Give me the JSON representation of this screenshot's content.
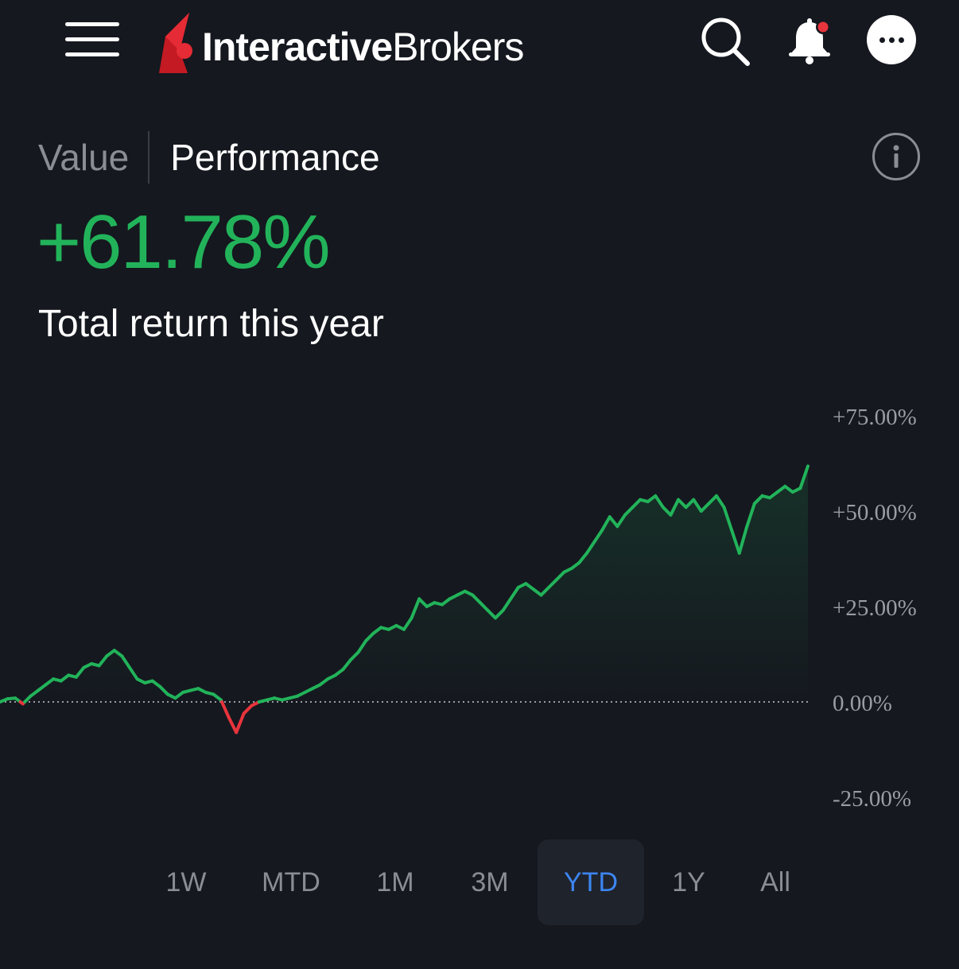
{
  "header": {
    "logo_bold": "Interactive",
    "logo_light": "Brokers",
    "icons": [
      "menu-icon",
      "search-icon",
      "bell-icon",
      "more-icon"
    ],
    "notification_dot_color": "#e8343d"
  },
  "toggle": {
    "value_label": "Value",
    "performance_label": "Performance",
    "active": "Performance"
  },
  "summary": {
    "return_value": "+61.78%",
    "return_caption": "Total return this year"
  },
  "colors": {
    "positive": "#22b35a",
    "negative": "#e8343d",
    "accent": "#3d86f2",
    "background": "#15181f"
  },
  "chart_data": {
    "type": "line",
    "title": "",
    "xlabel": "",
    "ylabel": "",
    "ylim": [
      -25,
      75
    ],
    "yticks": [
      "+75.00%",
      "+50.00%",
      "+25.00%",
      "0.00%",
      "-25.00%"
    ],
    "ytick_values": [
      75,
      50,
      25,
      0,
      -25
    ],
    "baseline": 0,
    "baseline_style": "dotted",
    "grid": false,
    "series": [
      {
        "values": [
          0.0,
          0.8,
          1.0,
          -0.5,
          1.5,
          3.0,
          4.5,
          6.0,
          5.5,
          7.0,
          6.5,
          9.0,
          10.0,
          9.5,
          12.0,
          13.5,
          12.0,
          9.0,
          6.0,
          5.0,
          5.5,
          4.0,
          2.0,
          1.0,
          2.5,
          3.0,
          3.5,
          2.5,
          2.0,
          0.5,
          -4.0,
          -8.0,
          -3.0,
          -1.0,
          0.0,
          0.5,
          1.0,
          0.5,
          1.0,
          1.5,
          2.5,
          3.5,
          4.5,
          6.0,
          7.0,
          8.5,
          11.0,
          13.0,
          16.0,
          18.0,
          19.5,
          19.0,
          20.0,
          19.0,
          22.0,
          27.0,
          25.0,
          26.0,
          25.5,
          27.0,
          28.0,
          29.0,
          28.0,
          26.0,
          24.0,
          22.0,
          24.0,
          27.0,
          30.0,
          31.0,
          29.5,
          28.0,
          30.0,
          32.0,
          34.0,
          35.0,
          36.5,
          39.0,
          42.0,
          45.0,
          48.5,
          46.0,
          49.0,
          51.0,
          53.0,
          52.5,
          54.0,
          51.0,
          49.0,
          53.0,
          51.0,
          53.0,
          50.0,
          52.0,
          54.0,
          51.0,
          45.0,
          39.0,
          46.0,
          52.0,
          54.0,
          53.5,
          55.0,
          56.5,
          55.0,
          56.0,
          61.8
        ]
      }
    ]
  },
  "ranges": {
    "options": [
      "1W",
      "MTD",
      "1M",
      "3M",
      "YTD",
      "1Y",
      "All"
    ],
    "selected": "YTD"
  }
}
